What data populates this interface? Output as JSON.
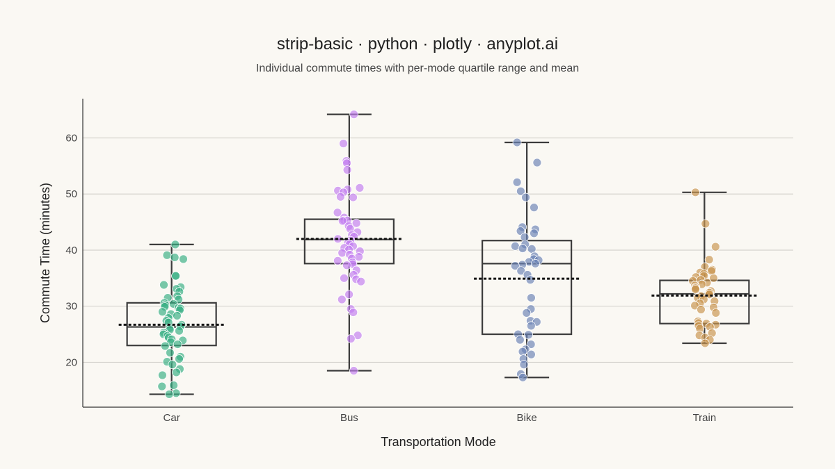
{
  "chart_data": {
    "type": "scatter",
    "subtype": "strip-with-box",
    "title": "strip-basic · python · plotly · anyplot.ai",
    "subtitle": "Individual commute times with per-mode quartile range and mean",
    "xlabel": "Transportation Mode",
    "ylabel": "Commute Time (minutes)",
    "ylim": [
      12,
      67
    ],
    "yticks": [
      20,
      30,
      40,
      50,
      60
    ],
    "grid": "horizontal",
    "categories": [
      "Car",
      "Bus",
      "Bike",
      "Train"
    ],
    "series": [
      {
        "category": "Car",
        "color": "#3aaf85",
        "q1": 23.0,
        "median": 26.3,
        "q3": 30.6,
        "mean": 26.7,
        "whisker_low": 14.3,
        "whisker_high": 41.0,
        "values": [
          41.0,
          39.1,
          38.7,
          38.4,
          35.4,
          35.4,
          33.8,
          33.4,
          33.1,
          32.6,
          31.8,
          31.5,
          31.2,
          30.6,
          30.4,
          30.2,
          29.9,
          29.7,
          29.6,
          29.3,
          29.0,
          28.6,
          28.3,
          27.9,
          27.4,
          27.1,
          26.7,
          26.4,
          26.1,
          25.8,
          25.6,
          25.3,
          25.0,
          24.7,
          24.4,
          24.1,
          23.9,
          23.6,
          23.2,
          22.9,
          21.7,
          21.0,
          20.6,
          20.1,
          19.6,
          18.8,
          18.2,
          17.7,
          15.9,
          15.7,
          14.5,
          14.3
        ]
      },
      {
        "category": "Bus",
        "color": "#c27ff0",
        "q1": 37.6,
        "median": 41.9,
        "q3": 45.5,
        "mean": 42.0,
        "whisker_low": 18.5,
        "whisker_high": 64.2,
        "values": [
          64.2,
          59.0,
          55.9,
          55.5,
          54.3,
          51.1,
          50.8,
          50.6,
          50.3,
          49.5,
          49.4,
          46.7,
          45.8,
          45.3,
          45.3,
          45.2,
          44.8,
          44.3,
          43.8,
          43.2,
          42.7,
          42.4,
          42.0,
          41.7,
          41.3,
          41.0,
          40.7,
          40.4,
          40.1,
          39.8,
          39.5,
          39.2,
          38.8,
          38.5,
          38.1,
          37.8,
          37.5,
          37.3,
          36.4,
          35.6,
          35.0,
          34.8,
          34.4,
          32.1,
          31.2,
          29.5,
          28.9,
          24.8,
          24.2,
          18.5
        ]
      },
      {
        "category": "Bike",
        "color": "#6b83b6",
        "q1": 25.0,
        "median": 37.6,
        "q3": 41.7,
        "mean": 34.9,
        "whisker_low": 17.3,
        "whisker_high": 59.2,
        "values": [
          59.2,
          55.6,
          52.1,
          50.5,
          49.4,
          47.6,
          44.1,
          43.7,
          43.4,
          43.0,
          42.3,
          41.0,
          40.7,
          40.3,
          40.2,
          38.9,
          38.4,
          38.2,
          37.9,
          37.6,
          37.4,
          37.2,
          36.3,
          35.6,
          34.7,
          31.5,
          29.5,
          28.8,
          27.4,
          27.2,
          26.5,
          25.0,
          24.9,
          24.0,
          23.2,
          22.3,
          21.9,
          21.4,
          20.6,
          19.6,
          17.9,
          17.3
        ]
      },
      {
        "category": "Train",
        "color": "#c99550",
        "q1": 26.9,
        "median": 32.2,
        "q3": 34.6,
        "mean": 31.9,
        "whisker_low": 23.4,
        "whisker_high": 50.3,
        "values": [
          50.3,
          44.7,
          40.6,
          38.3,
          37.0,
          36.5,
          36.3,
          36.0,
          35.8,
          35.4,
          35.2,
          35.0,
          34.7,
          34.5,
          34.2,
          33.9,
          33.7,
          33.4,
          33.2,
          33.0,
          32.7,
          32.4,
          32.1,
          31.8,
          31.5,
          31.2,
          30.9,
          30.5,
          30.1,
          29.8,
          29.4,
          28.8,
          27.3,
          27.0,
          26.9,
          26.7,
          26.5,
          26.3,
          26.0,
          25.2,
          24.8,
          24.4,
          24.0,
          23.4
        ]
      }
    ]
  }
}
